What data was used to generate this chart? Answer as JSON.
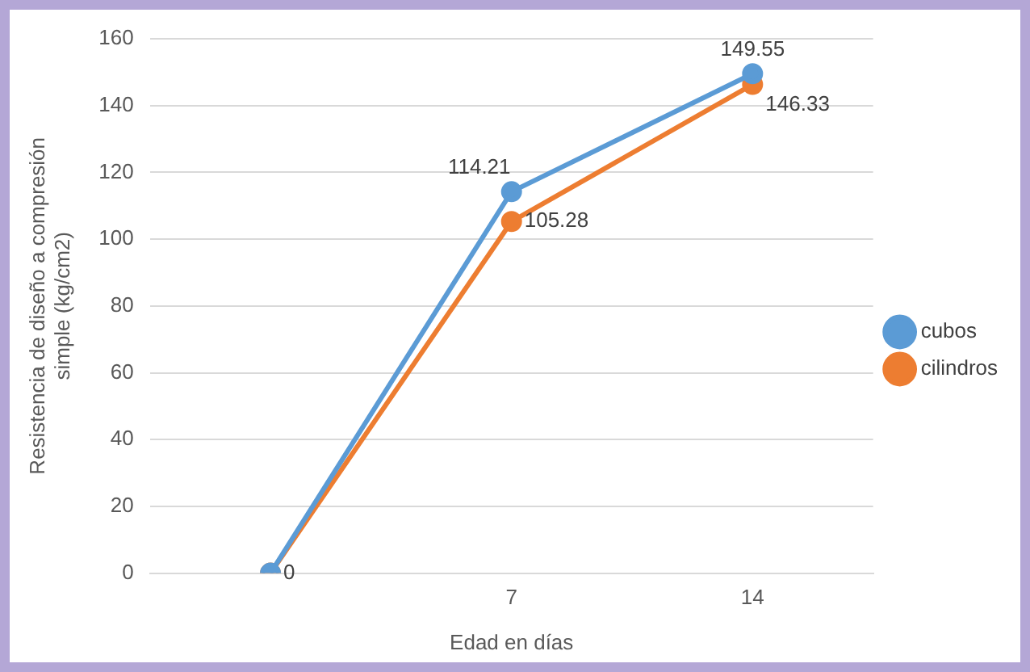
{
  "chart_data": {
    "type": "line",
    "xlabel": "Edad en días",
    "ylabel": "Resistencia de diseño a compresión simple (kg/cm2)",
    "categories": [
      null,
      "7",
      "14"
    ],
    "series": [
      {
        "name": "cubos",
        "color": "#5b9bd5",
        "values": [
          0,
          114.21,
          149.55
        ],
        "value_labels": [
          null,
          "114.21",
          "149.55"
        ]
      },
      {
        "name": "cilindros",
        "color": "#ed7d31",
        "values": [
          0,
          105.28,
          146.33
        ],
        "value_labels": [
          "0",
          "105.28",
          "146.33"
        ]
      }
    ],
    "ylim": [
      0,
      160
    ],
    "yticks": [
      0,
      20,
      40,
      60,
      80,
      100,
      120,
      140,
      160
    ],
    "grid": "y",
    "legend": "right",
    "marker": "circle",
    "line_style": "solid"
  }
}
